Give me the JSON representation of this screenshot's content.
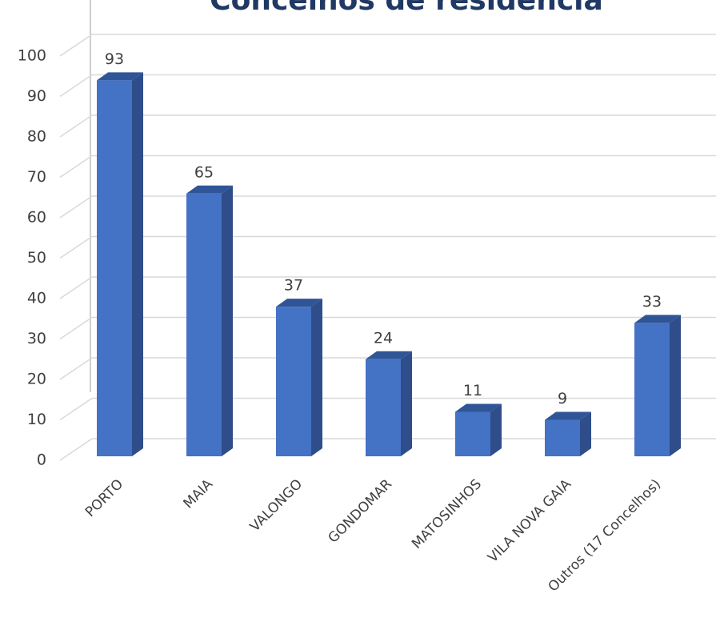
{
  "chart_data": {
    "type": "bar",
    "title": "Concelhos de residência",
    "categories": [
      "PORTO",
      "MAIA",
      "VALONGO",
      "GONDOMAR",
      "MATOSINHOS",
      "VILA NOVA GAIA",
      "Outros (17 Concelhos)"
    ],
    "values": [
      93,
      65,
      37,
      24,
      11,
      9,
      33
    ],
    "color": "#4472c4",
    "ylim": [
      0,
      100
    ],
    "yticks": [
      0,
      10,
      20,
      30,
      40,
      50,
      60,
      70,
      80,
      90,
      100
    ],
    "grid": true
  }
}
